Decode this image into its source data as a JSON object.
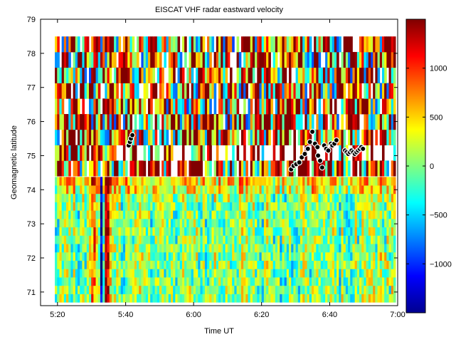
{
  "chart_data": {
    "type": "heatmap",
    "title": "EISCAT VHF radar eastward velocity",
    "xlabel": "Time  UT",
    "ylabel": "Geomagnetic latitude",
    "x_ticks": [
      {
        "value": 5.333,
        "label": "5:20"
      },
      {
        "value": 5.667,
        "label": "5:40"
      },
      {
        "value": 6.0,
        "label": "6:00"
      },
      {
        "value": 6.333,
        "label": "6:20"
      },
      {
        "value": 6.667,
        "label": "6:40"
      },
      {
        "value": 7.0,
        "label": "7:00"
      }
    ],
    "y_ticks": [
      {
        "value": 71,
        "label": "71"
      },
      {
        "value": 72,
        "label": "72"
      },
      {
        "value": 73,
        "label": "73"
      },
      {
        "value": 74,
        "label": "74"
      },
      {
        "value": 75,
        "label": "75"
      },
      {
        "value": 76,
        "label": "76"
      },
      {
        "value": 77,
        "label": "77"
      },
      {
        "value": 78,
        "label": "78"
      },
      {
        "value": 79,
        "label": "79"
      }
    ],
    "xlim": [
      5.25,
      7.0
    ],
    "ylim": [
      70.6,
      79.0
    ],
    "colorbar": {
      "colormap": "jet",
      "clim": [
        -1500,
        1500
      ],
      "ticks": [
        {
          "value": -1000,
          "label": "−1000"
        },
        {
          "value": -500,
          "label": "−500"
        },
        {
          "value": 0,
          "label": "0"
        },
        {
          "value": 500,
          "label": "500"
        },
        {
          "value": 1000,
          "label": "1000"
        }
      ]
    },
    "grid": false,
    "overlay_points": {
      "marker": "circle",
      "fill": "#000000",
      "edge": "#ffffff",
      "x": [
        5.682,
        5.688,
        5.693,
        5.7,
        6.478,
        6.49,
        6.503,
        6.518,
        6.53,
        6.545,
        6.56,
        6.57,
        6.582,
        6.595,
        6.607,
        6.61,
        6.62,
        6.63,
        6.64,
        6.65,
        6.66,
        6.673,
        6.68,
        6.69,
        6.7,
        6.742,
        6.75,
        6.758,
        6.766,
        6.774,
        6.782,
        6.79,
        6.798,
        6.806,
        6.814,
        6.822,
        6.83
      ],
      "y": [
        75.3,
        75.4,
        75.5,
        75.6,
        74.6,
        74.7,
        74.75,
        74.8,
        74.95,
        75.05,
        75.2,
        75.4,
        75.7,
        75.35,
        75.25,
        75.0,
        74.85,
        74.65,
        75.3,
        75.2,
        75.15,
        75.35,
        75.3,
        75.35,
        75.45,
        75.15,
        75.1,
        75.05,
        75.1,
        75.15,
        75.1,
        75.05,
        75.1,
        75.15,
        75.2,
        75.25,
        75.2
      ]
    }
  }
}
